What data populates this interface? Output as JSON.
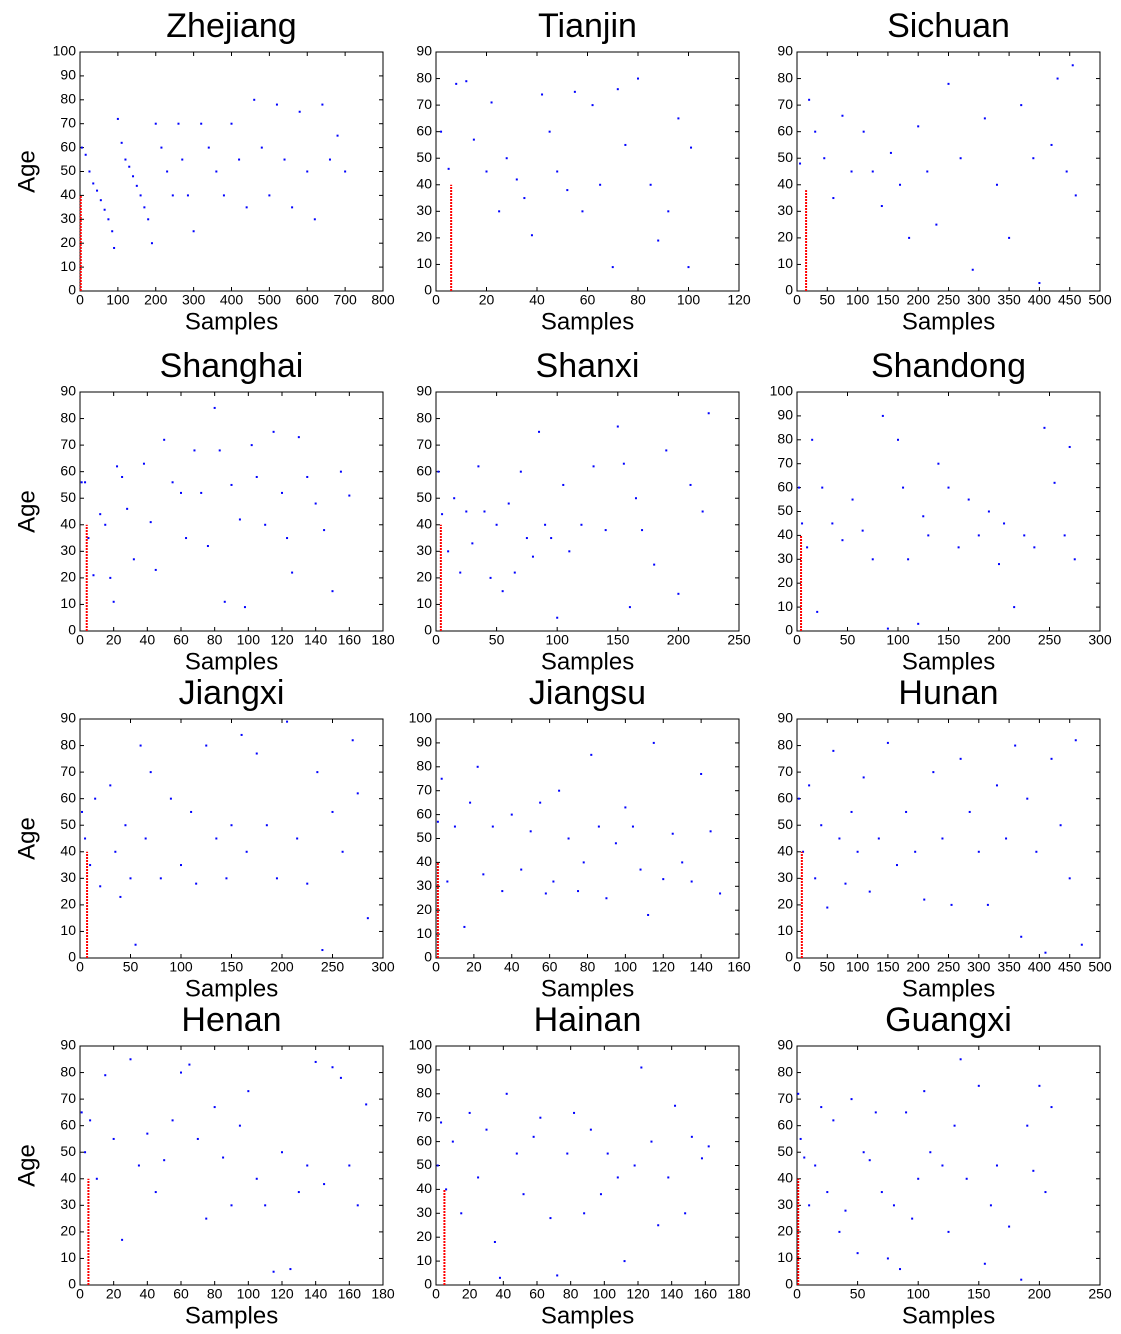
{
  "chart_data": [
    {
      "type": "scatter",
      "title": "Zhejiang",
      "xlabel": "Samples",
      "ylabel": "Age",
      "color": "#0000ff",
      "x": [
        5,
        15,
        25,
        35,
        45,
        55,
        65,
        75,
        85,
        90,
        100,
        110,
        120,
        130,
        140,
        150,
        160,
        170,
        180,
        190,
        200,
        215,
        230,
        245,
        260,
        270,
        285,
        300,
        320,
        340,
        360,
        380,
        400,
        420,
        440,
        460,
        480,
        500,
        520,
        540,
        560,
        580,
        600,
        620,
        640,
        660,
        680,
        700
      ],
      "values": [
        60,
        57,
        50,
        45,
        42,
        38,
        34,
        30,
        25,
        18,
        72,
        62,
        55,
        52,
        48,
        44,
        40,
        35,
        30,
        20,
        70,
        60,
        50,
        40,
        70,
        55,
        40,
        25,
        70,
        60,
        50,
        40,
        70,
        55,
        35,
        80,
        60,
        40,
        78,
        55,
        35,
        75,
        50,
        30,
        78,
        55,
        65,
        50
      ],
      "xlim": [
        0,
        800
      ],
      "ylim": [
        0,
        100
      ],
      "xticks": [
        0,
        100,
        200,
        300,
        400,
        500,
        600,
        700,
        800
      ],
      "yticks": [
        0,
        10,
        20,
        30,
        40,
        50,
        60,
        70,
        80,
        90,
        100
      ],
      "reference_line": {
        "x": 2,
        "y": [
          0,
          40
        ],
        "color": "#ff0000"
      }
    },
    {
      "type": "scatter",
      "title": "Tianjin",
      "xlabel": "Samples",
      "color": "#0000ff",
      "x": [
        2,
        5,
        8,
        12,
        15,
        20,
        22,
        25,
        28,
        32,
        35,
        38,
        42,
        45,
        48,
        52,
        55,
        58,
        62,
        65,
        70,
        72,
        75,
        80,
        85,
        88,
        92,
        96,
        100,
        101
      ],
      "values": [
        60,
        46,
        78,
        79,
        57,
        45,
        71,
        30,
        50,
        42,
        35,
        21,
        74,
        60,
        45,
        38,
        75,
        30,
        70,
        40,
        9,
        76,
        55,
        80,
        40,
        19,
        30,
        65,
        9,
        54
      ],
      "xlim": [
        0,
        120
      ],
      "ylim": [
        0,
        90
      ],
      "xticks": [
        0,
        20,
        40,
        60,
        80,
        100,
        120
      ],
      "yticks": [
        0,
        10,
        20,
        30,
        40,
        50,
        60,
        70,
        80,
        90
      ],
      "reference_line": {
        "x": 6,
        "y": [
          0,
          40
        ],
        "color": "#ff0000"
      }
    },
    {
      "type": "scatter",
      "title": "Sichuan",
      "xlabel": "Samples",
      "color": "#0000ff",
      "x": [
        5,
        20,
        30,
        45,
        60,
        75,
        90,
        110,
        125,
        140,
        155,
        170,
        185,
        200,
        215,
        230,
        250,
        270,
        290,
        310,
        330,
        350,
        370,
        390,
        400,
        420,
        430,
        445,
        455,
        460
      ],
      "values": [
        48,
        72,
        60,
        50,
        35,
        66,
        45,
        60,
        45,
        32,
        52,
        40,
        20,
        62,
        45,
        25,
        78,
        50,
        8,
        65,
        40,
        20,
        70,
        50,
        3,
        55,
        80,
        45,
        85,
        36
      ],
      "xlim": [
        0,
        500
      ],
      "ylim": [
        0,
        90
      ],
      "xticks": [
        0,
        50,
        100,
        150,
        200,
        250,
        300,
        350,
        400,
        450,
        500
      ],
      "yticks": [
        0,
        10,
        20,
        30,
        40,
        50,
        60,
        70,
        80,
        90
      ],
      "reference_line": {
        "x": 15,
        "y": [
          0,
          38
        ],
        "color": "#ff0000"
      }
    },
    {
      "type": "scatter",
      "title": "Shanghai",
      "xlabel": "Samples",
      "ylabel": "Age",
      "color": "#0000ff",
      "x": [
        1,
        3,
        5,
        8,
        12,
        15,
        18,
        20,
        22,
        25,
        28,
        32,
        38,
        42,
        45,
        50,
        55,
        60,
        63,
        68,
        72,
        76,
        80,
        83,
        86,
        90,
        95,
        98,
        102,
        105,
        110,
        115,
        120,
        123,
        126,
        130,
        135,
        140,
        145,
        150,
        155,
        160
      ],
      "values": [
        56,
        56,
        35,
        21,
        44,
        40,
        20,
        11,
        62,
        58,
        46,
        27,
        63,
        41,
        23,
        72,
        56,
        52,
        35,
        68,
        52,
        32,
        84,
        68,
        11,
        55,
        42,
        9,
        70,
        58,
        40,
        75,
        52,
        35,
        22,
        73,
        58,
        48,
        38,
        15,
        60,
        51
      ],
      "xlim": [
        0,
        180
      ],
      "ylim": [
        0,
        90
      ],
      "xticks": [
        0,
        20,
        40,
        60,
        80,
        100,
        120,
        140,
        160,
        180
      ],
      "yticks": [
        0,
        10,
        20,
        30,
        40,
        50,
        60,
        70,
        80,
        90
      ],
      "reference_line": {
        "x": 4,
        "y": [
          0,
          40
        ],
        "color": "#ff0000"
      }
    },
    {
      "type": "scatter",
      "title": "Shanxi",
      "xlabel": "Samples",
      "color": "#0000ff",
      "x": [
        2,
        5,
        10,
        15,
        20,
        25,
        30,
        35,
        40,
        45,
        50,
        55,
        60,
        65,
        70,
        75,
        80,
        85,
        90,
        95,
        100,
        105,
        110,
        120,
        130,
        140,
        150,
        155,
        160,
        165,
        170,
        180,
        190,
        200,
        210,
        220,
        225
      ],
      "values": [
        60,
        44,
        30,
        50,
        22,
        45,
        33,
        62,
        45,
        20,
        40,
        15,
        48,
        22,
        60,
        35,
        28,
        75,
        40,
        35,
        5,
        55,
        30,
        40,
        62,
        38,
        77,
        63,
        9,
        50,
        38,
        25,
        68,
        14,
        55,
        45,
        82
      ],
      "xlim": [
        0,
        250
      ],
      "ylim": [
        0,
        90
      ],
      "xticks": [
        0,
        50,
        100,
        150,
        200,
        250
      ],
      "yticks": [
        0,
        10,
        20,
        30,
        40,
        50,
        60,
        70,
        80,
        90
      ],
      "reference_line": {
        "x": 4,
        "y": [
          0,
          40
        ],
        "color": "#ff0000"
      }
    },
    {
      "type": "scatter",
      "title": "Shandong",
      "xlabel": "Samples",
      "color": "#0000ff",
      "x": [
        2,
        5,
        10,
        15,
        20,
        25,
        35,
        45,
        55,
        65,
        75,
        85,
        90,
        100,
        105,
        110,
        120,
        125,
        130,
        140,
        150,
        160,
        170,
        180,
        190,
        200,
        205,
        215,
        225,
        235,
        245,
        255,
        265,
        270,
        275
      ],
      "values": [
        60,
        45,
        35,
        80,
        8,
        60,
        45,
        38,
        55,
        42,
        30,
        90,
        1,
        80,
        60,
        30,
        3,
        48,
        40,
        70,
        60,
        35,
        55,
        40,
        50,
        28,
        45,
        10,
        40,
        35,
        85,
        62,
        40,
        77,
        30
      ],
      "xlim": [
        0,
        300
      ],
      "ylim": [
        0,
        100
      ],
      "xticks": [
        0,
        50,
        100,
        150,
        200,
        250,
        300
      ],
      "yticks": [
        0,
        10,
        20,
        30,
        40,
        50,
        60,
        70,
        80,
        90,
        100
      ],
      "reference_line": {
        "x": 4,
        "y": [
          0,
          40
        ],
        "color": "#ff0000"
      }
    },
    {
      "type": "scatter",
      "title": "Jiangxi",
      "xlabel": "Samples",
      "ylabel": "Age",
      "color": "#0000ff",
      "x": [
        2,
        5,
        10,
        15,
        20,
        30,
        35,
        40,
        45,
        50,
        55,
        60,
        65,
        70,
        80,
        90,
        100,
        110,
        115,
        125,
        135,
        145,
        150,
        160,
        165,
        175,
        185,
        195,
        205,
        215,
        225,
        235,
        240,
        250,
        260,
        270,
        275,
        285
      ],
      "values": [
        55,
        45,
        35,
        60,
        27,
        65,
        40,
        23,
        50,
        30,
        5,
        80,
        45,
        70,
        30,
        60,
        35,
        55,
        28,
        80,
        45,
        30,
        50,
        84,
        40,
        77,
        50,
        30,
        89,
        45,
        28,
        70,
        3,
        55,
        40,
        82,
        62,
        15
      ],
      "xlim": [
        0,
        300
      ],
      "ylim": [
        0,
        90
      ],
      "xticks": [
        0,
        50,
        100,
        150,
        200,
        250,
        300
      ],
      "yticks": [
        0,
        10,
        20,
        30,
        40,
        50,
        60,
        70,
        80,
        90
      ],
      "reference_line": {
        "x": 7,
        "y": [
          0,
          40
        ],
        "color": "#ff0000"
      }
    },
    {
      "type": "scatter",
      "title": "Jiangsu",
      "xlabel": "Samples",
      "color": "#0000ff",
      "x": [
        1,
        3,
        6,
        10,
        15,
        18,
        22,
        25,
        30,
        35,
        40,
        45,
        50,
        55,
        58,
        62,
        65,
        70,
        75,
        78,
        82,
        86,
        90,
        95,
        100,
        104,
        108,
        112,
        115,
        120,
        125,
        130,
        135,
        140,
        145,
        150
      ],
      "values": [
        57,
        75,
        32,
        55,
        13,
        65,
        80,
        35,
        55,
        28,
        60,
        37,
        53,
        65,
        27,
        32,
        70,
        50,
        28,
        40,
        85,
        55,
        25,
        48,
        63,
        55,
        37,
        18,
        90,
        33,
        52,
        40,
        32,
        77,
        53,
        27
      ],
      "xlim": [
        0,
        160
      ],
      "ylim": [
        0,
        100
      ],
      "xticks": [
        0,
        20,
        40,
        60,
        80,
        100,
        120,
        140,
        160
      ],
      "yticks": [
        0,
        10,
        20,
        30,
        40,
        50,
        60,
        70,
        80,
        90,
        100
      ],
      "reference_line": {
        "x": 1,
        "y": [
          0,
          40
        ],
        "color": "#ff0000"
      }
    },
    {
      "type": "scatter",
      "title": "Hunan",
      "xlabel": "Samples",
      "color": "#0000ff",
      "x": [
        3,
        10,
        20,
        30,
        40,
        50,
        60,
        70,
        80,
        90,
        100,
        110,
        120,
        135,
        150,
        165,
        180,
        195,
        210,
        225,
        240,
        255,
        270,
        285,
        300,
        315,
        330,
        345,
        360,
        370,
        380,
        395,
        410,
        420,
        435,
        450,
        460,
        470
      ],
      "values": [
        60,
        40,
        65,
        30,
        50,
        19,
        78,
        45,
        28,
        55,
        40,
        68,
        25,
        45,
        81,
        35,
        55,
        40,
        22,
        70,
        45,
        20,
        75,
        55,
        40,
        20,
        65,
        45,
        80,
        8,
        60,
        40,
        2,
        75,
        50,
        30,
        82,
        5
      ],
      "xlim": [
        0,
        500
      ],
      "ylim": [
        0,
        90
      ],
      "xticks": [
        0,
        50,
        100,
        150,
        200,
        250,
        300,
        350,
        400,
        450,
        500
      ],
      "yticks": [
        0,
        10,
        20,
        30,
        40,
        50,
        60,
        70,
        80,
        90
      ],
      "reference_line": {
        "x": 8,
        "y": [
          0,
          40
        ],
        "color": "#ff0000"
      }
    },
    {
      "type": "scatter",
      "title": "Henan",
      "xlabel": "Samples",
      "ylabel": "Age",
      "color": "#0000ff",
      "x": [
        1,
        3,
        6,
        10,
        15,
        20,
        25,
        30,
        35,
        40,
        45,
        50,
        55,
        60,
        65,
        70,
        75,
        80,
        85,
        90,
        95,
        100,
        105,
        110,
        115,
        120,
        125,
        130,
        135,
        140,
        145,
        150,
        155,
        160,
        165,
        170
      ],
      "values": [
        65,
        50,
        62,
        40,
        79,
        55,
        17,
        85,
        45,
        57,
        35,
        47,
        62,
        80,
        83,
        55,
        25,
        67,
        48,
        30,
        60,
        73,
        40,
        30,
        5,
        50,
        6,
        35,
        45,
        84,
        38,
        82,
        78,
        45,
        30,
        68
      ],
      "xlim": [
        0,
        180
      ],
      "ylim": [
        0,
        90
      ],
      "xticks": [
        0,
        20,
        40,
        60,
        80,
        100,
        120,
        140,
        160,
        180
      ],
      "yticks": [
        0,
        10,
        20,
        30,
        40,
        50,
        60,
        70,
        80,
        90
      ],
      "reference_line": {
        "x": 5,
        "y": [
          0,
          40
        ],
        "color": "#ff0000"
      }
    },
    {
      "type": "scatter",
      "title": "Hainan",
      "xlabel": "Samples",
      "color": "#0000ff",
      "x": [
        1,
        3,
        6,
        10,
        15,
        20,
        25,
        30,
        35,
        38,
        42,
        48,
        52,
        58,
        62,
        68,
        72,
        78,
        82,
        88,
        92,
        98,
        102,
        108,
        112,
        118,
        122,
        128,
        132,
        138,
        142,
        148,
        152,
        158,
        162
      ],
      "values": [
        50,
        68,
        40,
        60,
        30,
        72,
        45,
        65,
        18,
        3,
        80,
        55,
        38,
        62,
        70,
        28,
        4,
        55,
        72,
        30,
        65,
        38,
        55,
        45,
        10,
        50,
        91,
        60,
        25,
        45,
        75,
        30,
        62,
        53,
        58
      ],
      "xlim": [
        0,
        180
      ],
      "ylim": [
        0,
        100
      ],
      "xticks": [
        0,
        20,
        40,
        60,
        80,
        100,
        120,
        140,
        160,
        180
      ],
      "yticks": [
        0,
        10,
        20,
        30,
        40,
        50,
        60,
        70,
        80,
        90,
        100
      ],
      "reference_line": {
        "x": 5,
        "y": [
          0,
          40
        ],
        "color": "#ff0000"
      }
    },
    {
      "type": "scatter",
      "title": "Guangxi",
      "xlabel": "Samples",
      "color": "#0000ff",
      "x": [
        1,
        3,
        6,
        10,
        15,
        20,
        25,
        30,
        35,
        40,
        45,
        50,
        55,
        60,
        65,
        70,
        75,
        80,
        85,
        90,
        95,
        100,
        105,
        110,
        120,
        125,
        130,
        135,
        140,
        150,
        155,
        160,
        165,
        175,
        185,
        190,
        195,
        200,
        205,
        210
      ],
      "values": [
        72,
        55,
        48,
        30,
        45,
        67,
        35,
        62,
        20,
        28,
        70,
        12,
        50,
        47,
        65,
        35,
        10,
        30,
        6,
        65,
        25,
        40,
        73,
        50,
        45,
        20,
        60,
        85,
        40,
        75,
        8,
        30,
        45,
        22,
        2,
        60,
        43,
        75,
        35,
        67
      ],
      "xlim": [
        0,
        250
      ],
      "ylim": [
        0,
        90
      ],
      "xticks": [
        0,
        50,
        100,
        150,
        200,
        250
      ],
      "yticks": [
        0,
        10,
        20,
        30,
        40,
        50,
        60,
        70,
        80,
        90
      ],
      "reference_line": {
        "x": 1,
        "y": [
          0,
          40
        ],
        "color": "#ff0000"
      }
    }
  ]
}
